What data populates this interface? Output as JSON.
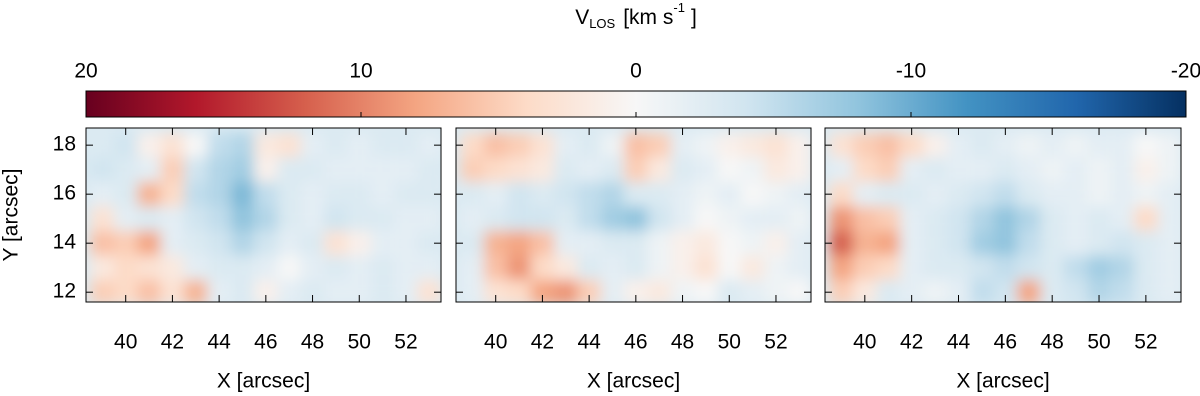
{
  "chart_data": [
    {
      "type": "colorbar",
      "label": {
        "text": "V",
        "subscript": "LOS",
        "unit": "[km s",
        "superscript": "-1",
        "close": "]"
      },
      "clim": [
        20,
        -20
      ],
      "ticks": [
        20,
        10,
        0,
        -10,
        -20
      ],
      "colormap": [
        "#67001f",
        "#b2182b",
        "#d6604d",
        "#f4a582",
        "#fddbc7",
        "#f7f7f7",
        "#d1e5f0",
        "#92c5de",
        "#4393c3",
        "#2166ac",
        "#053061"
      ]
    },
    {
      "type": "heatmap",
      "xlabel": "X [arcsec]",
      "ylabel": "Y [arcsec]",
      "xlim": [
        38.3,
        53.5
      ],
      "ylim": [
        11.6,
        18.7
      ],
      "xticks": [
        40,
        42,
        44,
        46,
        48,
        50,
        52
      ],
      "yticks": [
        12,
        14,
        16,
        18
      ],
      "x": [
        39,
        40,
        41,
        42,
        43,
        44,
        45,
        46,
        47,
        48,
        49,
        50,
        51,
        52,
        53
      ],
      "y": [
        18,
        17,
        16,
        15,
        14,
        13,
        12
      ],
      "z": [
        [
          -3,
          -4,
          1,
          3,
          0,
          -5,
          -6,
          2,
          3,
          -2,
          -3,
          -2,
          -3,
          -3,
          -2
        ],
        [
          -4,
          -3,
          -2,
          5,
          -4,
          -6,
          -7,
          1,
          -3,
          -3,
          -2,
          -2,
          -2,
          -2,
          -3
        ],
        [
          -2,
          -3,
          7,
          4,
          -5,
          -6,
          -9,
          -5,
          -3,
          -2,
          -3,
          -3,
          -2,
          -3,
          -3
        ],
        [
          3,
          -2,
          -3,
          -2,
          -4,
          -5,
          -8,
          -6,
          -3,
          -2,
          -4,
          -3,
          -3,
          -2,
          -2
        ],
        [
          6,
          5,
          8,
          -2,
          -3,
          -4,
          -6,
          -4,
          -2,
          -3,
          3,
          1,
          -2,
          -2,
          -3
        ],
        [
          2,
          4,
          3,
          2,
          -2,
          -3,
          -3,
          -2,
          0,
          -2,
          -3,
          -2,
          -3,
          -2,
          -2
        ],
        [
          5,
          4,
          6,
          3,
          7,
          -2,
          -3,
          1,
          -2,
          -3,
          -2,
          -2,
          -3,
          -2,
          3
        ]
      ]
    },
    {
      "type": "heatmap",
      "xlabel": "X [arcsec]",
      "xlim": [
        38.3,
        53.5
      ],
      "ylim": [
        11.6,
        18.7
      ],
      "xticks": [
        40,
        42,
        44,
        46,
        48,
        50,
        52
      ],
      "yticks": [
        12,
        14,
        16,
        18
      ],
      "x": [
        39,
        40,
        41,
        42,
        43,
        44,
        45,
        46,
        47,
        48,
        49,
        50,
        51,
        52,
        53
      ],
      "y": [
        18,
        17,
        16,
        15,
        14,
        13,
        12
      ],
      "z": [
        [
          4,
          6,
          5,
          3,
          -2,
          -3,
          -1,
          6,
          5,
          -2,
          -1,
          1,
          2,
          3,
          1
        ],
        [
          5,
          4,
          3,
          2,
          -3,
          -2,
          -3,
          5,
          2,
          -3,
          -2,
          0,
          -1,
          2,
          1
        ],
        [
          -3,
          -2,
          -4,
          -3,
          -4,
          -5,
          -6,
          -3,
          -3,
          -2,
          -1,
          -2,
          0,
          -1,
          -2
        ],
        [
          -2,
          -3,
          -4,
          -4,
          -3,
          -5,
          -7,
          -8,
          -4,
          -2,
          0,
          -1,
          -2,
          -2,
          -1
        ],
        [
          -3,
          7,
          8,
          6,
          -2,
          -2,
          -3,
          -3,
          -1,
          1,
          2,
          0,
          -1,
          1,
          -2
        ],
        [
          -2,
          6,
          9,
          4,
          2,
          -3,
          -2,
          -3,
          -1,
          1,
          3,
          0,
          2,
          -1,
          -2
        ],
        [
          -2,
          3,
          4,
          8,
          9,
          5,
          -2,
          1,
          2,
          -1,
          0,
          -3,
          -2,
          -1,
          0
        ]
      ]
    },
    {
      "type": "heatmap",
      "xlabel": "X [arcsec]",
      "xlim": [
        38.3,
        53.5
      ],
      "ylim": [
        11.6,
        18.7
      ],
      "xticks": [
        40,
        42,
        44,
        46,
        48,
        50,
        52
      ],
      "yticks": [
        12,
        14,
        16,
        18
      ],
      "x": [
        39,
        40,
        41,
        42,
        43,
        44,
        45,
        46,
        47,
        48,
        49,
        50,
        51,
        52,
        53
      ],
      "y": [
        18,
        17,
        16,
        15,
        14,
        13,
        12
      ],
      "z": [
        [
          3,
          5,
          6,
          4,
          1,
          -2,
          -3,
          -2,
          -1,
          -2,
          -1,
          -2,
          -2,
          0,
          -1
        ],
        [
          -2,
          4,
          5,
          -2,
          -3,
          -2,
          -2,
          -3,
          -2,
          -1,
          -2,
          -1,
          -2,
          1,
          -1
        ],
        [
          4,
          -2,
          -3,
          -3,
          -2,
          -3,
          -4,
          -5,
          -3,
          -2,
          -2,
          -1,
          -2,
          -1,
          -2
        ],
        [
          9,
          6,
          5,
          -2,
          -3,
          -4,
          -6,
          -8,
          -6,
          -3,
          -2,
          -3,
          -2,
          4,
          -2
        ],
        [
          12,
          7,
          8,
          -2,
          -3,
          -4,
          -7,
          -8,
          -5,
          -3,
          -2,
          -3,
          -4,
          -3,
          -2
        ],
        [
          8,
          5,
          4,
          -2,
          -3,
          -3,
          -4,
          -5,
          -4,
          -3,
          -5,
          -7,
          -6,
          -3,
          -2
        ],
        [
          5,
          2,
          -3,
          -2,
          -1,
          -2,
          -5,
          -4,
          8,
          -3,
          -4,
          -6,
          -5,
          -3,
          -2
        ]
      ]
    }
  ]
}
